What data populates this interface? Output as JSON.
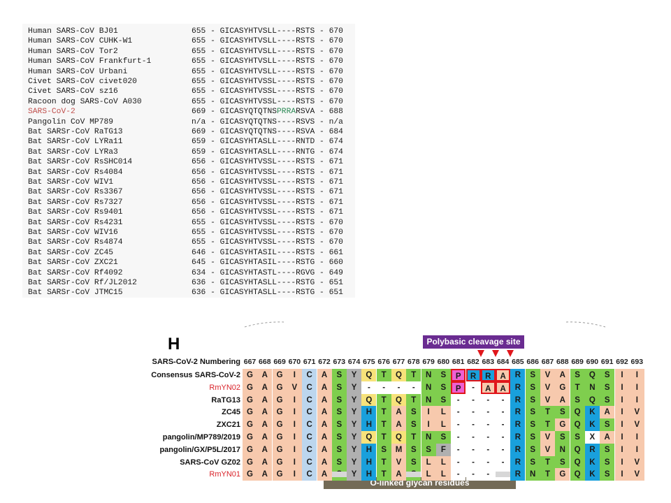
{
  "top_table": {
    "rows": [
      {
        "name": "Human SARS-CoV BJ01",
        "seq": "655 - GICASYHTVSLL----RSTS - 670"
      },
      {
        "name": "Human SARS-CoV CUHK-W1",
        "seq": "655 - GICASYHTVSLL----RSTS - 670"
      },
      {
        "name": "Human SARS-CoV Tor2",
        "seq": "655 - GICASYHTVSLL----RSTS - 670"
      },
      {
        "name": "Human SARS-CoV Frankfurt-1",
        "seq": "655 - GICASYHTVSLL----RSTS - 670"
      },
      {
        "name": "Human SARS-CoV Urbani",
        "seq": "655 - GICASYHTVSLL----RSTS - 670"
      },
      {
        "name": "Civet SARS-CoV civet020",
        "seq": "655 - GICASYHTVSSL----RSTS - 670"
      },
      {
        "name": "Civet SARS-CoV sz16",
        "seq": "655 - GICASYHTVSSL----RSTS - 670"
      },
      {
        "name": "Racoon dog SARS-CoV A030",
        "seq": "655 - GICASYHTVSSL----RSTS - 670"
      },
      {
        "name": "SARS-CoV-2",
        "seq_pre": "669 - GICASYQTQTNS",
        "seq_green": "PRRA",
        "seq_post": "RSVA - 688"
      },
      {
        "name": "Pangolin CoV MP789",
        "seq": "n/a - GICASYQTQTNS----RSVS - n/a"
      },
      {
        "name": "Bat SARSr-CoV RaTG13",
        "seq": "669 - GICASYQTQTNS----RSVA - 684"
      },
      {
        "name": "Bat SARSr-CoV LYRa11",
        "seq": "659 - GICASYHTASLL----RNTD - 674"
      },
      {
        "name": "Bat SARSr-CoV LYRa3",
        "seq": "659 - GICASYHTASLL----RNTG - 674"
      },
      {
        "name": "Bat SARSr-CoV RsSHC014",
        "seq": "656 - GICASYHTVSSL----RSTS - 671"
      },
      {
        "name": "Bat SARSr-CoV Rs4084",
        "seq": "656 - GICASYHTVSSL----RSTS - 671"
      },
      {
        "name": "Bat SARSr-CoV WIV1",
        "seq": "656 - GICASYHTVSSL----RSTS - 671"
      },
      {
        "name": "Bat SARSr-CoV Rs3367",
        "seq": "656 - GICASYHTVSSL----RSTS - 671"
      },
      {
        "name": "Bat SARSr-CoV Rs7327",
        "seq": "656 - GICASYHTVSSL----RSTS - 671"
      },
      {
        "name": "Bat SARSr-CoV Rs9401",
        "seq": "656 - GICASYHTVSSL----RSTS - 671"
      },
      {
        "name": "Bat SARSr-CoV Rs4231",
        "seq": "655 - GICASYHTVSSL----RSTS - 670"
      },
      {
        "name": "Bat SARSr-CoV WIV16",
        "seq": "655 - GICASYHTVSSL----RSTS - 670"
      },
      {
        "name": "Bat SARSr-CoV Rs4874",
        "seq": "655 - GICASYHTVSSL----RSTS - 670"
      },
      {
        "name": "Bat SARSr-CoV ZC45",
        "seq": "646 - GICASYHTASIL----RSTS - 661"
      },
      {
        "name": "Bat SARSr-CoV ZXC21",
        "seq": "645 - GICASYHTASIL----RSTG - 660"
      },
      {
        "name": "Bat SARSr-CoV Rf4092",
        "seq": "634 - GICASYHTASTL----RGVG - 649"
      },
      {
        "name": "Bat SARSr-CoV Rf/JL2012",
        "seq": "636 - GICASYHTASLL----RSTG - 651"
      },
      {
        "name": "Bat SARSr-CoV JTMC15",
        "seq": "636 - GICASYHTASLL----RSTG - 651"
      }
    ]
  },
  "panel_h": {
    "letter": "H",
    "polybasic_label": "Polybasic cleavage site",
    "numbering_label": "SARS-CoV-2 Numbering",
    "numbers": [
      "667",
      "668",
      "669",
      "670",
      "671",
      "672",
      "673",
      "674",
      "675",
      "676",
      "677",
      "678",
      "679",
      "680",
      "681",
      "682",
      "683",
      "684",
      "685",
      "686",
      "687",
      "688",
      "689",
      "690",
      "691",
      "692",
      "693"
    ],
    "rows": [
      {
        "name": "Consensus SARS-CoV-2",
        "seq": "GAGICASYQTQTNSPRRARSVASQSII"
      },
      {
        "name": "RmYN02",
        "seq": "GAGVCASY----NSP-AARSVGTNSII"
      },
      {
        "name": "RaTG13",
        "seq": "GAGICASYQTQTNS----RSVASQSII"
      },
      {
        "name": "ZC45",
        "seq": "GAGICASYHTASIL----RSTSQKAIV"
      },
      {
        "name": "ZXC21",
        "seq": "GAGICASYHTASIL----RSTGQKSIV"
      },
      {
        "name": "pangolin/MP789/2019",
        "seq": "GAGICASYQTQTNS----RSVSSXAII"
      },
      {
        "name": "pangolin/GX/P5L/2017",
        "seq": "GAGICASYHSMSSF----RSVNQRSII"
      },
      {
        "name": "SARS-CoV GZ02",
        "seq": "GAGICASYHTVSLL----RSTSQKSIV"
      },
      {
        "name": "RmYN01",
        "seq": "GAGICASYHTASLL----RNTGQKSIV"
      }
    ],
    "red_rows": [
      1,
      8
    ],
    "cleavage_arrows": [
      15,
      16,
      17
    ],
    "glycan_columns": [
      6,
      11,
      17
    ],
    "glycan_label": "O-linked glycan residues",
    "residue_colors": {
      "G": "#f7c9ad",
      "A": "#f7c9ad",
      "V": "#f7c9ad",
      "I": "#f7c9ad",
      "L": "#f7c9ad",
      "M": "#f7c9ad",
      "C": "#bcd6ee",
      "S": "#7fce4e",
      "T": "#7fce4e",
      "N": "#7fce4e",
      "Q": "#7fce4e",
      "Y": "#b0b0b0",
      "F": "#b0b0b0",
      "H": "#19a0dc",
      "R": "#19a0dc",
      "K": "#19a0dc",
      "P": "#f7e27a",
      "-": "#ffffff",
      "X": "#ffffff"
    },
    "cell_overrides": [
      {
        "row": 0,
        "col": 14,
        "color": "#ef5fd2"
      },
      {
        "row": 1,
        "col": 14,
        "color": "#ef5fd2"
      },
      {
        "row": 0,
        "col": 8,
        "color": "#f7e27a"
      },
      {
        "row": 0,
        "col": 10,
        "color": "#f7e27a"
      },
      {
        "row": 2,
        "col": 8,
        "color": "#f7e27a"
      },
      {
        "row": 2,
        "col": 10,
        "color": "#f7e27a"
      },
      {
        "row": 5,
        "col": 8,
        "color": "#f7e27a"
      },
      {
        "row": 5,
        "col": 10,
        "color": "#f7e27a"
      }
    ],
    "highlight_cells": [
      {
        "row": 0,
        "col": 14
      },
      {
        "row": 0,
        "col": 15
      },
      {
        "row": 0,
        "col": 16
      },
      {
        "row": 0,
        "col": 17
      },
      {
        "row": 1,
        "col": 14
      },
      {
        "row": 1,
        "col": 16
      },
      {
        "row": 1,
        "col": 17
      }
    ]
  }
}
